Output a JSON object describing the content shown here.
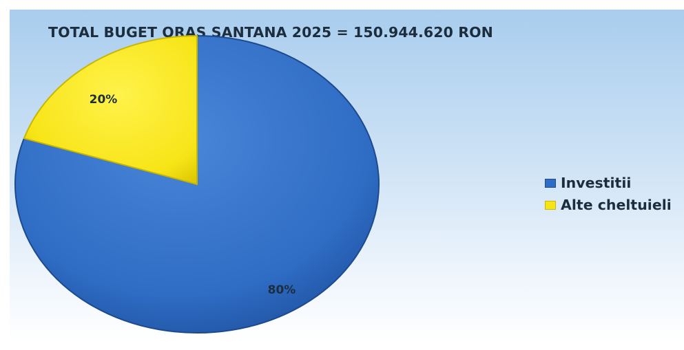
{
  "chart_data": {
    "type": "pie",
    "title": "TOTAL BUGET  ORAS SANTANA 2025 = 150.944.620 RON",
    "categories": [
      "Investitii",
      "Alte cheltuieli"
    ],
    "values": [
      80,
      20
    ],
    "data_labels": [
      "80%",
      "20%"
    ],
    "colors": [
      "#2f6cc4",
      "#f7e417"
    ],
    "legend_position": "right",
    "start_angle_deg": 0,
    "direction": "clockwise"
  }
}
